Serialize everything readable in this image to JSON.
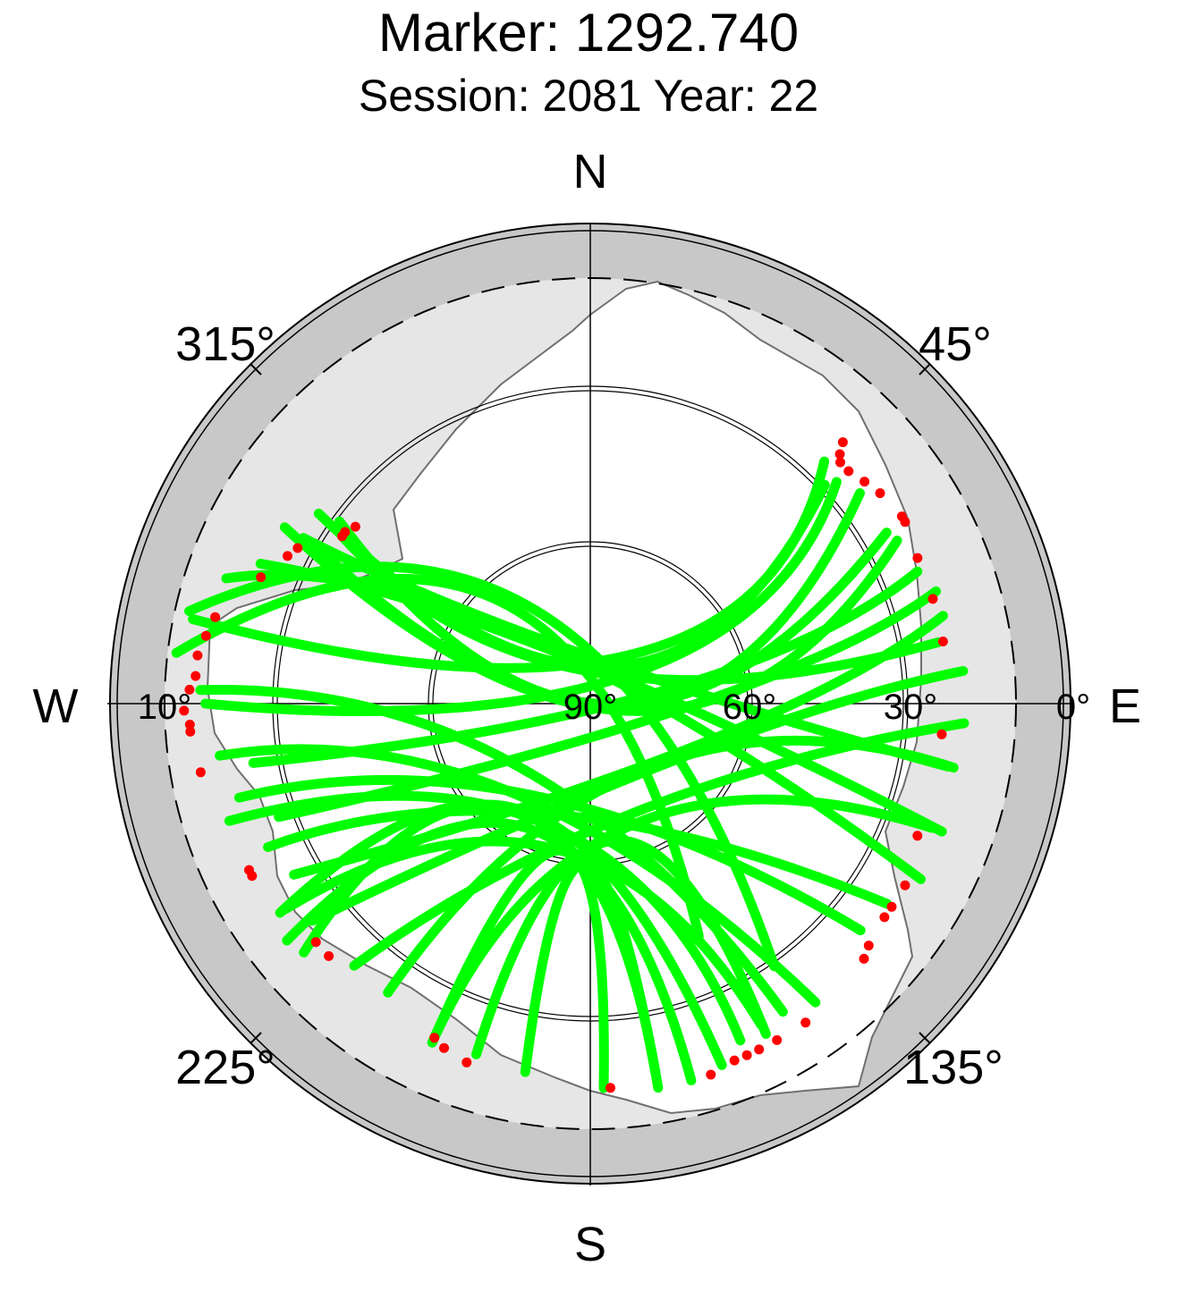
{
  "title": "Marker: 1292.740",
  "subtitle": "Session: 2081 Year: 22",
  "chart_data": {
    "type": "scatter",
    "projection": "polar (sky plot: azimuth clockwise from N, elevation 0° at rim to 90° at centre)",
    "cardinal_labels": {
      "north": "N",
      "east": "E",
      "south": "S",
      "west": "W"
    },
    "azimuth_labels": [
      "45°",
      "135°",
      "225°",
      "315°"
    ],
    "elevation_labels": [
      "0°",
      "30°",
      "60°",
      "90°",
      "10°"
    ],
    "elevation_circles": [
      30,
      60
    ],
    "cutoff_elevation": 10,
    "colors": {
      "outer_ring": "#c8c8c8",
      "mask_area": "#e6e6e6",
      "visible_area": "#ffffff",
      "track": "#00ff00",
      "masked_point": "#ff0000",
      "grid": "#000000",
      "horizon_line": "#707070"
    },
    "series": [
      {
        "name": "",
        "color": "#00ff00",
        "tracks": [
          {
            "az": [
              304,
              0,
              80
            ],
            "el": [
              34,
              84,
              24
            ]
          },
          {
            "az": [
              300,
              345,
              100
            ],
            "el": [
              28,
              80,
              22
            ]
          },
          {
            "az": [
              293,
              325,
              110
            ],
            "el": [
              23,
              78,
              20
            ]
          },
          {
            "az": [
              289,
              315,
              118
            ],
            "el": [
              18,
              72,
              20
            ]
          },
          {
            "az": [
              283,
              330,
              145
            ],
            "el": [
              13,
              70,
              30
            ]
          },
          {
            "az": [
              277,
              320,
              155
            ],
            "el": [
              12,
              66,
              42
            ]
          },
          {
            "az": [
              47,
              30,
              305
            ],
            "el": [
              30,
              82,
              28
            ]
          },
          {
            "az": [
              44,
              40,
              282
            ],
            "el": [
              27,
              78,
              14
            ]
          },
          {
            "az": [
              48,
              55,
              270
            ],
            "el": [
              28,
              80,
              18
            ]
          },
          {
            "az": [
              52,
              90,
              300
            ],
            "el": [
              26,
              82,
              30
            ]
          },
          {
            "az": [
              60,
              95,
              306
            ],
            "el": [
              26,
              86,
              32
            ]
          },
          {
            "az": [
              62,
              100,
              300
            ],
            "el": [
              25,
              82,
              24
            ]
          },
          {
            "az": [
              68,
              80,
              260
            ],
            "el": [
              24,
              76,
              26
            ]
          },
          {
            "az": [
              72,
              90,
              250
            ],
            "el": [
              22,
              70,
              28
            ]
          },
          {
            "az": [
              76,
              110,
              240
            ],
            "el": [
              22,
              68,
              26
            ]
          },
          {
            "az": [
              85,
              120,
              232
            ],
            "el": [
              20,
              70,
              24
            ]
          },
          {
            "az": [
              93,
              160,
              222
            ],
            "el": [
              20,
              68,
              24
            ]
          },
          {
            "az": [
              100,
              140,
              215
            ],
            "el": [
              21,
              74,
              24
            ]
          },
          {
            "az": [
              110,
              160,
              205
            ],
            "el": [
              22,
              66,
              22
            ]
          },
          {
            "az": [
              124,
              200,
              246
            ],
            "el": [
              23,
              68,
              24
            ]
          },
          {
            "az": [
              130,
              210,
              255
            ],
            "el": [
              24,
              70,
              22
            ]
          },
          {
            "az": [
              143,
              220,
              262
            ],
            "el": [
              20,
              68,
              20
            ]
          },
          {
            "az": [
              148,
              230,
              272
            ],
            "el": [
              22,
              72,
              17
            ]
          },
          {
            "az": [
              152,
              195,
              236
            ],
            "el": [
              22,
              62,
              21
            ]
          },
          {
            "az": [
              156,
              200,
              252
            ],
            "el": [
              21,
              66,
              19
            ]
          },
          {
            "az": [
              160,
              215,
              229
            ],
            "el": [
              18,
              66,
              19
            ]
          },
          {
            "az": [
              165,
              205,
              232
            ],
            "el": [
              17,
              64,
              18
            ]
          },
          {
            "az": [
              170,
              210,
              236
            ],
            "el": [
              17,
              66,
              20
            ]
          },
          {
            "az": [
              178,
              190,
              205
            ],
            "el": [
              18,
              62,
              20
            ]
          },
          {
            "az": [
              190,
              182,
              170
            ],
            "el": [
              20,
              60,
              20
            ]
          },
          {
            "az": [
              198,
              170,
              152
            ],
            "el": [
              21,
              64,
              20
            ]
          }
        ]
      },
      {
        "name": "",
        "color": "#ff0000",
        "points": [
          {
            "az": 44,
            "el": 22
          },
          {
            "az": 45,
            "el": 24
          },
          {
            "az": 46,
            "el": 25
          },
          {
            "az": 48,
            "el": 25
          },
          {
            "az": 51,
            "el": 24
          },
          {
            "az": 54,
            "el": 23
          },
          {
            "az": 59,
            "el": 22
          },
          {
            "az": 60,
            "el": 22
          },
          {
            "az": 66,
            "el": 23
          },
          {
            "az": 73,
            "el": 23
          },
          {
            "az": 80,
            "el": 23
          },
          {
            "az": 95,
            "el": 24
          },
          {
            "az": 112,
            "el": 24
          },
          {
            "az": 120,
            "el": 22
          },
          {
            "az": 124,
            "el": 22
          },
          {
            "az": 126,
            "el": 22
          },
          {
            "az": 131,
            "el": 21
          },
          {
            "az": 133,
            "el": 20
          },
          {
            "az": 146,
            "el": 18
          },
          {
            "az": 151,
            "el": 18
          },
          {
            "az": 154,
            "el": 18
          },
          {
            "az": 156,
            "el": 18
          },
          {
            "az": 158,
            "el": 18
          },
          {
            "az": 162,
            "el": 17
          },
          {
            "az": 177,
            "el": 18
          },
          {
            "az": 199,
            "el": 19
          },
          {
            "az": 203,
            "el": 20
          },
          {
            "az": 205,
            "el": 21
          },
          {
            "az": 226,
            "el": 22
          },
          {
            "az": 229,
            "el": 22
          },
          {
            "az": 243,
            "el": 19
          },
          {
            "az": 244,
            "el": 19
          },
          {
            "az": 260,
            "el": 16
          },
          {
            "az": 266,
            "el": 15
          },
          {
            "az": 267,
            "el": 15
          },
          {
            "az": 269,
            "el": 14
          },
          {
            "az": 272,
            "el": 15
          },
          {
            "az": 274,
            "el": 16
          },
          {
            "az": 277,
            "el": 16
          },
          {
            "az": 280,
            "el": 17
          },
          {
            "az": 283,
            "el": 18
          },
          {
            "az": 291,
            "el": 24
          },
          {
            "az": 296,
            "el": 27
          },
          {
            "az": 298,
            "el": 28
          },
          {
            "az": 304,
            "el": 34
          },
          {
            "az": 305,
            "el": 34
          },
          {
            "az": 307,
            "el": 35
          }
        ]
      }
    ]
  }
}
